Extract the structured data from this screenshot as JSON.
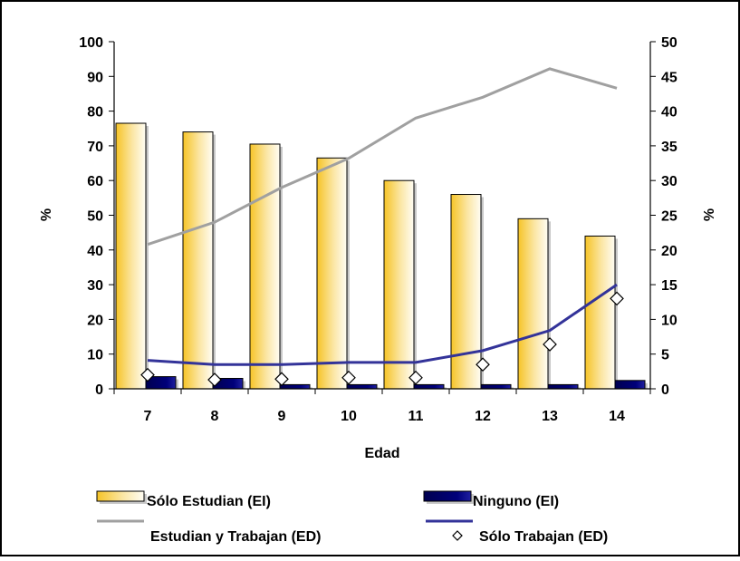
{
  "chart_data": {
    "type": "bar",
    "categories": [
      "7",
      "8",
      "9",
      "10",
      "11",
      "12",
      "13",
      "14"
    ],
    "xlabel": "Edad",
    "ylabel_left": "%",
    "ylabel_right": "%",
    "ylim_left": [
      0,
      100
    ],
    "ylim_right": [
      0,
      50
    ],
    "yticks_left": [
      "0",
      "10",
      "20",
      "30",
      "40",
      "50",
      "60",
      "70",
      "80",
      "90",
      "100"
    ],
    "yticks_right": [
      "0",
      "5",
      "10",
      "15",
      "20",
      "25",
      "30",
      "35",
      "40",
      "45",
      "50"
    ],
    "grid": false,
    "legend_position": "bottom",
    "series": [
      {
        "name": "Sólo Estudian (EI)",
        "type": "bar",
        "axis": "left",
        "color": "#f6c427",
        "values": [
          76.5,
          74,
          70.5,
          66.5,
          60,
          56,
          49,
          44
        ]
      },
      {
        "name": "Ninguno (EI)",
        "type": "bar",
        "axis": "left",
        "color": "#000080",
        "values": [
          3.5,
          3,
          1.2,
          1.2,
          1.2,
          1.2,
          1.2,
          2.4
        ]
      },
      {
        "name": "Estudian y Trabajan (ED)",
        "type": "line",
        "axis": "right",
        "color": "#a0a0a0",
        "values": [
          20.8,
          24,
          29,
          33.2,
          39,
          42,
          46.1,
          43.3
        ]
      },
      {
        "name": "Sólo Trabajan (ED)",
        "type": "line",
        "axis": "right",
        "color": "#333399",
        "values": [
          4.1,
          3.5,
          3.5,
          3.8,
          3.8,
          5.5,
          8.4,
          15
        ]
      },
      {
        "name": "Sólo Trabajan (ED)",
        "type": "scatter",
        "axis": "right",
        "color": "#ffffff",
        "values": [
          2,
          1.3,
          1.4,
          1.6,
          1.6,
          3.5,
          6.4,
          13
        ]
      }
    ]
  }
}
